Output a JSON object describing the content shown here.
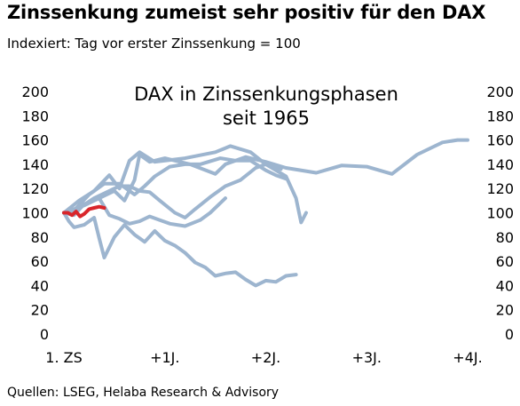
{
  "header": {
    "title": "Zinssenkung zumeist sehr positiv für den DAX",
    "subtitle": "Indexiert: Tag vor erster Zinssenkung = 100"
  },
  "footer": {
    "source": "Quellen: LSEG, Helaba Research & Advisory"
  },
  "colors": {
    "historical": "#9db5cf",
    "current": "#d9262b"
  },
  "chart_data": {
    "type": "line",
    "title": "DAX in Zinssenkungsphasen seit 1965",
    "title_lines": [
      "DAX in Zinssenkungsphasen",
      "seit 1965"
    ],
    "xlabel": "",
    "ylabel": "",
    "x_unit": "years since first rate cut",
    "xlim": [
      -0.05,
      4.0
    ],
    "ylim": [
      0,
      200
    ],
    "y_ticks": [
      "0",
      "20",
      "40",
      "60",
      "80",
      "100",
      "120",
      "140",
      "160",
      "180",
      "200"
    ],
    "x_ticks": [
      {
        "x": 0,
        "label": "1. ZS"
      },
      {
        "x": 1,
        "label": "+1J."
      },
      {
        "x": 2,
        "label": "+2J."
      },
      {
        "x": 3,
        "label": "+3J."
      },
      {
        "x": 4,
        "label": "+4J."
      }
    ],
    "grid": false,
    "legend": "none",
    "series": [
      {
        "role": "historical",
        "points": [
          [
            0,
            100
          ],
          [
            0.1,
            98
          ],
          [
            0.2,
            107
          ],
          [
            0.35,
            112
          ],
          [
            0.5,
            118
          ],
          [
            0.6,
            110
          ],
          [
            0.7,
            127
          ],
          [
            0.75,
            148
          ],
          [
            0.85,
            142
          ],
          [
            1.0,
            145
          ],
          [
            1.25,
            140
          ],
          [
            1.5,
            132
          ],
          [
            1.6,
            140
          ],
          [
            1.8,
            146
          ],
          [
            2.0,
            142
          ],
          [
            2.2,
            137
          ],
          [
            2.5,
            133
          ],
          [
            2.75,
            139
          ],
          [
            3.0,
            138
          ],
          [
            3.25,
            132
          ],
          [
            3.5,
            148
          ],
          [
            3.75,
            158
          ],
          [
            3.9,
            160
          ],
          [
            4.0,
            160
          ]
        ]
      },
      {
        "role": "historical",
        "points": [
          [
            0,
            100
          ],
          [
            0.15,
            110
          ],
          [
            0.3,
            118
          ],
          [
            0.45,
            131
          ],
          [
            0.55,
            120
          ],
          [
            0.65,
            143
          ],
          [
            0.75,
            150
          ],
          [
            0.9,
            142
          ],
          [
            1.2,
            145
          ],
          [
            1.5,
            150
          ],
          [
            1.65,
            155
          ],
          [
            1.85,
            150
          ],
          [
            2.0,
            140
          ],
          [
            2.1,
            135
          ],
          [
            2.2,
            130
          ],
          [
            2.3,
            112
          ],
          [
            2.35,
            92
          ],
          [
            2.4,
            100
          ]
        ]
      },
      {
        "role": "historical",
        "points": [
          [
            0,
            100
          ],
          [
            0.1,
            102
          ],
          [
            0.25,
            115
          ],
          [
            0.4,
            124
          ],
          [
            0.55,
            124
          ],
          [
            0.7,
            115
          ],
          [
            0.8,
            122
          ],
          [
            0.9,
            130
          ],
          [
            1.05,
            138
          ],
          [
            1.2,
            140
          ],
          [
            1.35,
            140
          ],
          [
            1.55,
            145
          ],
          [
            1.7,
            143
          ],
          [
            1.85,
            143
          ],
          [
            2.0,
            135
          ],
          [
            2.1,
            131
          ],
          [
            2.2,
            128
          ]
        ]
      },
      {
        "role": "historical",
        "points": [
          [
            0,
            100
          ],
          [
            0.15,
            104
          ],
          [
            0.3,
            112
          ],
          [
            0.45,
            118
          ],
          [
            0.55,
            122
          ],
          [
            0.65,
            122
          ],
          [
            0.75,
            118
          ],
          [
            0.85,
            117
          ],
          [
            0.95,
            110
          ],
          [
            1.1,
            100
          ],
          [
            1.2,
            96
          ],
          [
            1.3,
            103
          ],
          [
            1.45,
            113
          ],
          [
            1.6,
            122
          ],
          [
            1.75,
            127
          ],
          [
            1.9,
            137
          ],
          [
            2.0,
            140
          ],
          [
            2.15,
            136
          ]
        ]
      },
      {
        "role": "historical",
        "points": [
          [
            0,
            100
          ],
          [
            0.1,
            103
          ],
          [
            0.2,
            106
          ],
          [
            0.3,
            110
          ],
          [
            0.35,
            112
          ],
          [
            0.45,
            98
          ],
          [
            0.55,
            95
          ],
          [
            0.65,
            91
          ],
          [
            0.75,
            93
          ],
          [
            0.85,
            97
          ],
          [
            0.95,
            94
          ],
          [
            1.05,
            91
          ],
          [
            1.2,
            89
          ],
          [
            1.35,
            94
          ],
          [
            1.45,
            100
          ],
          [
            1.55,
            108
          ],
          [
            1.6,
            112
          ]
        ]
      },
      {
        "role": "historical",
        "points": [
          [
            0,
            100
          ],
          [
            0.05,
            93
          ],
          [
            0.1,
            88
          ],
          [
            0.2,
            90
          ],
          [
            0.3,
            96
          ],
          [
            0.35,
            79
          ],
          [
            0.4,
            63
          ],
          [
            0.5,
            80
          ],
          [
            0.6,
            90
          ],
          [
            0.7,
            82
          ],
          [
            0.8,
            76
          ],
          [
            0.9,
            85
          ],
          [
            1.0,
            77
          ],
          [
            1.1,
            73
          ],
          [
            1.2,
            67
          ],
          [
            1.3,
            59
          ],
          [
            1.4,
            55
          ],
          [
            1.5,
            48
          ],
          [
            1.6,
            50
          ],
          [
            1.7,
            51
          ],
          [
            1.8,
            45
          ],
          [
            1.9,
            40
          ],
          [
            2.0,
            44
          ],
          [
            2.1,
            43
          ],
          [
            2.2,
            48
          ],
          [
            2.3,
            49
          ]
        ]
      },
      {
        "role": "current",
        "points": [
          [
            0,
            100
          ],
          [
            0.04,
            100
          ],
          [
            0.08,
            98
          ],
          [
            0.12,
            101
          ],
          [
            0.16,
            97
          ],
          [
            0.2,
            99
          ],
          [
            0.25,
            103
          ],
          [
            0.3,
            104
          ],
          [
            0.35,
            105
          ],
          [
            0.4,
            104
          ]
        ]
      }
    ]
  }
}
